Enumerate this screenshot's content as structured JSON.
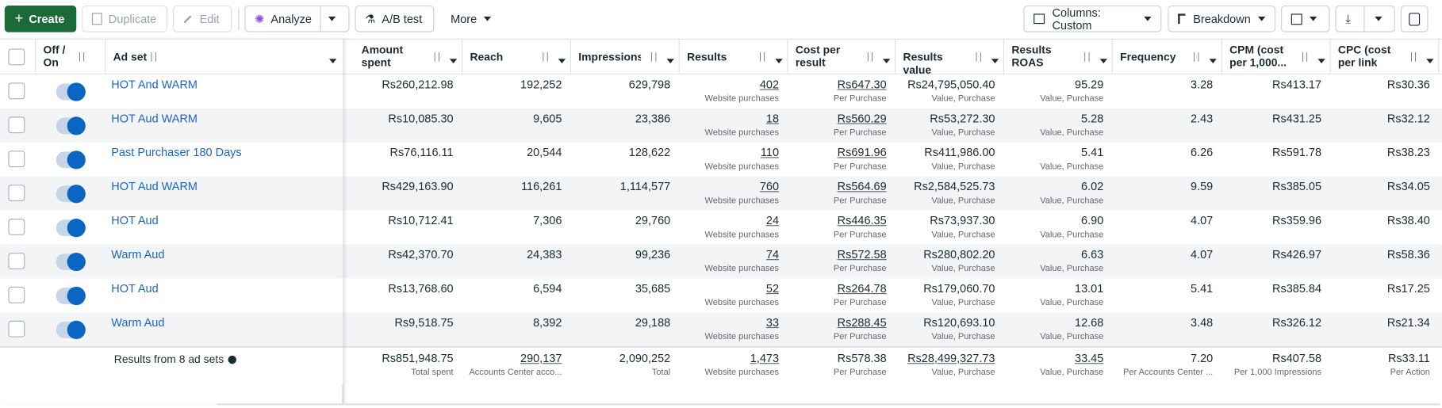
{
  "toolbar": {
    "create": "Create",
    "duplicate": "Duplicate",
    "edit": "Edit",
    "analyze": "Analyze",
    "ab_test": "A/B test",
    "more": "More",
    "columns": "Columns: Custom",
    "breakdown": "Breakdown"
  },
  "table": {
    "headers": {
      "toggle": "Off / On",
      "ad_set": "Ad set",
      "amount_spent": "Amount spent",
      "reach": "Reach",
      "impressions": "Impressions",
      "results": "Results",
      "cost_per_result": "Cost per result",
      "results_value": "Results value",
      "results_roas": "Results ROAS",
      "frequency": "Frequency",
      "cpm": "CPM (cost per 1,000...",
      "cpc": "CPC (cost per link click)"
    },
    "rows": [
      {
        "ad_set": "HOT And WARM",
        "amount_spent": "Rs260,212.98",
        "reach": "192,252",
        "impressions": "629,798",
        "results": "402",
        "results_sub": "Website purchases",
        "cost_per_result": "Rs647.30",
        "cost_per_result_sub": "Per Purchase",
        "results_value": "Rs24,795,050.40",
        "results_value_sub": "Value, Purchase",
        "results_roas": "95.29",
        "results_roas_sub": "Value, Purchase",
        "frequency": "3.28",
        "cpm": "Rs413.17",
        "cpc": "Rs30.36"
      },
      {
        "ad_set": "HOT Aud WARM",
        "amount_spent": "Rs10,085.30",
        "reach": "9,605",
        "impressions": "23,386",
        "results": "18",
        "results_sub": "Website purchases",
        "cost_per_result": "Rs560.29",
        "cost_per_result_sub": "Per Purchase",
        "results_value": "Rs53,272.30",
        "results_value_sub": "Value, Purchase",
        "results_roas": "5.28",
        "results_roas_sub": "Value, Purchase",
        "frequency": "2.43",
        "cpm": "Rs431.25",
        "cpc": "Rs32.12"
      },
      {
        "ad_set": "Past Purchaser 180 Days",
        "amount_spent": "Rs76,116.11",
        "reach": "20,544",
        "impressions": "128,622",
        "results": "110",
        "results_sub": "Website purchases",
        "cost_per_result": "Rs691.96",
        "cost_per_result_sub": "Per Purchase",
        "results_value": "Rs411,986.00",
        "results_value_sub": "Value, Purchase",
        "results_roas": "5.41",
        "results_roas_sub": "Value, Purchase",
        "frequency": "6.26",
        "cpm": "Rs591.78",
        "cpc": "Rs38.23"
      },
      {
        "ad_set": "HOT Aud WARM",
        "amount_spent": "Rs429,163.90",
        "reach": "116,261",
        "impressions": "1,114,577",
        "results": "760",
        "results_sub": "Website purchases",
        "cost_per_result": "Rs564.69",
        "cost_per_result_sub": "Per Purchase",
        "results_value": "Rs2,584,525.73",
        "results_value_sub": "Value, Purchase",
        "results_roas": "6.02",
        "results_roas_sub": "Value, Purchase",
        "frequency": "9.59",
        "cpm": "Rs385.05",
        "cpc": "Rs34.05"
      },
      {
        "ad_set": "HOT Aud",
        "amount_spent": "Rs10,712.41",
        "reach": "7,306",
        "impressions": "29,760",
        "results": "24",
        "results_sub": "Website purchases",
        "cost_per_result": "Rs446.35",
        "cost_per_result_sub": "Per Purchase",
        "results_value": "Rs73,937.30",
        "results_value_sub": "Value, Purchase",
        "results_roas": "6.90",
        "results_roas_sub": "Value, Purchase",
        "frequency": "4.07",
        "cpm": "Rs359.96",
        "cpc": "Rs38.40"
      },
      {
        "ad_set": "Warm Aud",
        "amount_spent": "Rs42,370.70",
        "reach": "24,383",
        "impressions": "99,236",
        "results": "74",
        "results_sub": "Website purchases",
        "cost_per_result": "Rs572.58",
        "cost_per_result_sub": "Per Purchase",
        "results_value": "Rs280,802.20",
        "results_value_sub": "Value, Purchase",
        "results_roas": "6.63",
        "results_roas_sub": "Value, Purchase",
        "frequency": "4.07",
        "cpm": "Rs426.97",
        "cpc": "Rs58.36"
      },
      {
        "ad_set": "HOT Aud",
        "amount_spent": "Rs13,768.60",
        "reach": "6,594",
        "impressions": "35,685",
        "results": "52",
        "results_sub": "Website purchases",
        "cost_per_result": "Rs264.78",
        "cost_per_result_sub": "Per Purchase",
        "results_value": "Rs179,060.70",
        "results_value_sub": "Value, Purchase",
        "results_roas": "13.01",
        "results_roas_sub": "Value, Purchase",
        "frequency": "5.41",
        "cpm": "Rs385.84",
        "cpc": "Rs17.25"
      },
      {
        "ad_set": "Warm Aud",
        "amount_spent": "Rs9,518.75",
        "reach": "8,392",
        "impressions": "29,188",
        "results": "33",
        "results_sub": "Website purchases",
        "cost_per_result": "Rs288.45",
        "cost_per_result_sub": "Per Purchase",
        "results_value": "Rs120,693.10",
        "results_value_sub": "Value, Purchase",
        "results_roas": "12.68",
        "results_roas_sub": "Value, Purchase",
        "frequency": "3.48",
        "cpm": "Rs326.12",
        "cpc": "Rs21.34"
      }
    ],
    "footer": {
      "summary": "Results from 8 ad sets",
      "amount_spent": {
        "value": "Rs851,948.75",
        "sub": "Total spent"
      },
      "reach": {
        "value": "290,137",
        "sub": "Accounts Center acco..."
      },
      "impressions": {
        "value": "2,090,252",
        "sub": "Total"
      },
      "results": {
        "value": "1,473",
        "sub": "Website purchases"
      },
      "cost_per_result": {
        "value": "Rs578.38",
        "sub": "Per Purchase"
      },
      "results_value": {
        "value": "Rs28,499,327.73",
        "sub": "Value, Purchase"
      },
      "results_roas": {
        "value": "33.45",
        "sub": "Value, Purchase"
      },
      "frequency": {
        "value": "7.20",
        "sub": "Per Accounts Center ..."
      },
      "cpm": {
        "value": "Rs407.58",
        "sub": "Per 1,000 Impressions"
      },
      "cpc": {
        "value": "Rs33.11",
        "sub": "Per Action"
      }
    }
  }
}
